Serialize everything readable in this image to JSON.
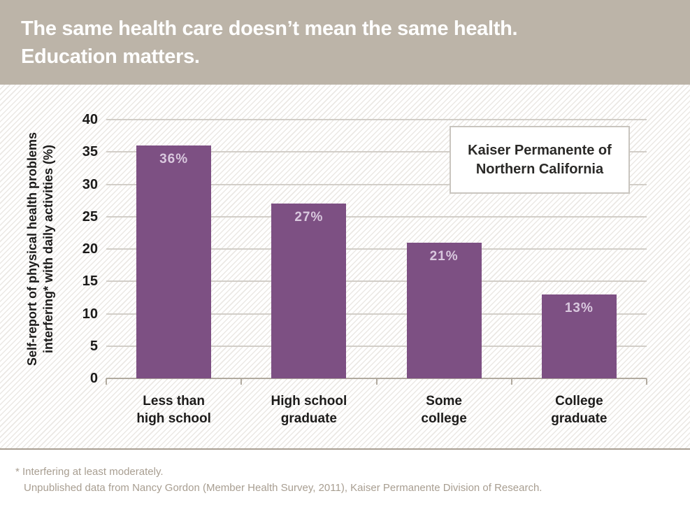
{
  "header": {
    "title_line1": "The same health care doesn’t mean the same health.",
    "title_line2": "Education matters."
  },
  "chart_data": {
    "type": "bar",
    "categories": [
      "Less than high school",
      "High school graduate",
      "Some college",
      "College graduate"
    ],
    "category_label_lines": [
      [
        "Less than",
        "high school"
      ],
      [
        "High school",
        "graduate"
      ],
      [
        "Some",
        "college"
      ],
      [
        "College",
        "graduate"
      ]
    ],
    "values": [
      36,
      27,
      21,
      13
    ],
    "value_labels": [
      "36%",
      "27%",
      "21%",
      "13%"
    ],
    "title": "The same health care doesn’t mean the same health. Education matters.",
    "xlabel": "",
    "ylabel_line1": "Self-report of physical health problems",
    "ylabel_line2": "interfering* with daily activities (%)",
    "ylim": [
      0,
      40
    ],
    "yticks": [
      0,
      5,
      10,
      15,
      20,
      25,
      30,
      35,
      40
    ],
    "grid": true,
    "legend": {
      "position": "upper right",
      "line1": "Kaiser Permanente of",
      "line2": "Northern California"
    }
  },
  "footnotes": {
    "line1": "* Interfering at least moderately.",
    "line2": "Unpublished data from Nancy Gordon (Member Health Survey, 2011), Kaiser Permanente Division of Research."
  },
  "colors": {
    "header_bg": "#bcb4a8",
    "bar": "#7d5083",
    "bar_value_label": "#d9c8de",
    "gridline": "#d2cec8",
    "axis": "#b1aa9f",
    "stripe": "#ebe8e4",
    "background": "#ffffff",
    "text_dark": "#1c1b1a",
    "footnote_text": "#a89e91",
    "legend_border": "#c9c5bf"
  }
}
